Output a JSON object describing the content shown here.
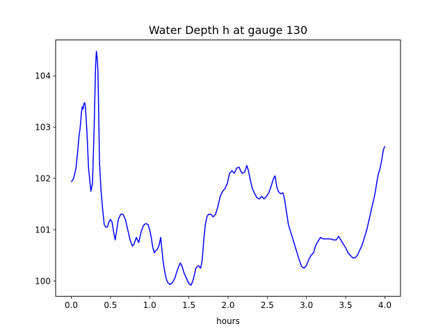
{
  "chart_data": {
    "type": "line",
    "title": "Water Depth h at gauge 130",
    "xlabel": "hours",
    "ylabel": "",
    "xlim": [
      -0.2,
      4.2
    ],
    "ylim": [
      99.7,
      104.7
    ],
    "xticks": [
      0.0,
      0.5,
      1.0,
      1.5,
      2.0,
      2.5,
      3.0,
      3.5,
      4.0
    ],
    "xtick_labels": [
      "0.0",
      "0.5",
      "1.0",
      "1.5",
      "2.0",
      "2.5",
      "3.0",
      "3.5",
      "4.0"
    ],
    "yticks": [
      100,
      101,
      102,
      103,
      104
    ],
    "ytick_labels": [
      "100",
      "101",
      "102",
      "103",
      "104"
    ],
    "grid": false,
    "legend": "none",
    "series": [
      {
        "color": "#0000ff",
        "points": [
          [
            0.0,
            101.93
          ],
          [
            0.03,
            102.0
          ],
          [
            0.06,
            102.2
          ],
          [
            0.08,
            102.5
          ],
          [
            0.1,
            102.85
          ],
          [
            0.11,
            102.95
          ],
          [
            0.12,
            103.1
          ],
          [
            0.13,
            103.3
          ],
          [
            0.14,
            103.4
          ],
          [
            0.15,
            103.35
          ],
          [
            0.16,
            103.45
          ],
          [
            0.17,
            103.48
          ],
          [
            0.18,
            103.4
          ],
          [
            0.2,
            102.9
          ],
          [
            0.22,
            102.2
          ],
          [
            0.25,
            101.75
          ],
          [
            0.27,
            101.9
          ],
          [
            0.29,
            102.9
          ],
          [
            0.31,
            104.2
          ],
          [
            0.32,
            104.48
          ],
          [
            0.33,
            104.35
          ],
          [
            0.34,
            104.1
          ],
          [
            0.36,
            102.3
          ],
          [
            0.38,
            101.75
          ],
          [
            0.4,
            101.4
          ],
          [
            0.42,
            101.1
          ],
          [
            0.44,
            101.05
          ],
          [
            0.46,
            101.05
          ],
          [
            0.48,
            101.15
          ],
          [
            0.5,
            101.2
          ],
          [
            0.52,
            101.15
          ],
          [
            0.54,
            100.95
          ],
          [
            0.56,
            100.8
          ],
          [
            0.58,
            101.0
          ],
          [
            0.6,
            101.2
          ],
          [
            0.63,
            101.3
          ],
          [
            0.66,
            101.3
          ],
          [
            0.69,
            101.2
          ],
          [
            0.72,
            101.0
          ],
          [
            0.75,
            100.8
          ],
          [
            0.78,
            100.68
          ],
          [
            0.8,
            100.72
          ],
          [
            0.83,
            100.85
          ],
          [
            0.86,
            100.75
          ],
          [
            0.89,
            100.95
          ],
          [
            0.92,
            101.08
          ],
          [
            0.95,
            101.12
          ],
          [
            0.98,
            101.1
          ],
          [
            1.0,
            101.0
          ],
          [
            1.02,
            100.85
          ],
          [
            1.04,
            100.65
          ],
          [
            1.06,
            100.55
          ],
          [
            1.08,
            100.6
          ],
          [
            1.1,
            100.62
          ],
          [
            1.12,
            100.7
          ],
          [
            1.14,
            100.85
          ],
          [
            1.15,
            100.7
          ],
          [
            1.17,
            100.4
          ],
          [
            1.19,
            100.2
          ],
          [
            1.21,
            100.05
          ],
          [
            1.23,
            99.97
          ],
          [
            1.26,
            99.93
          ],
          [
            1.29,
            99.97
          ],
          [
            1.32,
            100.05
          ],
          [
            1.35,
            100.2
          ],
          [
            1.37,
            100.28
          ],
          [
            1.39,
            100.35
          ],
          [
            1.41,
            100.3
          ],
          [
            1.44,
            100.15
          ],
          [
            1.47,
            100.05
          ],
          [
            1.5,
            99.95
          ],
          [
            1.53,
            99.92
          ],
          [
            1.56,
            100.05
          ],
          [
            1.59,
            100.25
          ],
          [
            1.62,
            100.3
          ],
          [
            1.65,
            100.25
          ],
          [
            1.67,
            100.4
          ],
          [
            1.69,
            100.8
          ],
          [
            1.71,
            101.1
          ],
          [
            1.73,
            101.25
          ],
          [
            1.75,
            101.3
          ],
          [
            1.78,
            101.3
          ],
          [
            1.81,
            101.25
          ],
          [
            1.84,
            101.3
          ],
          [
            1.87,
            101.45
          ],
          [
            1.9,
            101.65
          ],
          [
            1.93,
            101.75
          ],
          [
            1.96,
            101.8
          ],
          [
            1.99,
            101.9
          ],
          [
            2.02,
            102.1
          ],
          [
            2.05,
            102.15
          ],
          [
            2.08,
            102.1
          ],
          [
            2.11,
            102.2
          ],
          [
            2.14,
            102.22
          ],
          [
            2.16,
            102.15
          ],
          [
            2.18,
            102.1
          ],
          [
            2.21,
            102.12
          ],
          [
            2.24,
            102.25
          ],
          [
            2.26,
            102.15
          ],
          [
            2.28,
            102.0
          ],
          [
            2.31,
            101.8
          ],
          [
            2.34,
            101.7
          ],
          [
            2.37,
            101.62
          ],
          [
            2.4,
            101.6
          ],
          [
            2.43,
            101.65
          ],
          [
            2.46,
            101.6
          ],
          [
            2.49,
            101.65
          ],
          [
            2.52,
            101.72
          ],
          [
            2.55,
            101.85
          ],
          [
            2.58,
            102.0
          ],
          [
            2.6,
            102.05
          ],
          [
            2.62,
            101.85
          ],
          [
            2.64,
            101.75
          ],
          [
            2.67,
            101.7
          ],
          [
            2.7,
            101.72
          ],
          [
            2.72,
            101.6
          ],
          [
            2.74,
            101.4
          ],
          [
            2.77,
            101.1
          ],
          [
            2.8,
            100.95
          ],
          [
            2.82,
            100.85
          ],
          [
            2.85,
            100.7
          ],
          [
            2.88,
            100.55
          ],
          [
            2.91,
            100.4
          ],
          [
            2.94,
            100.28
          ],
          [
            2.97,
            100.25
          ],
          [
            3.0,
            100.3
          ],
          [
            3.03,
            100.42
          ],
          [
            3.06,
            100.5
          ],
          [
            3.09,
            100.55
          ],
          [
            3.12,
            100.7
          ],
          [
            3.15,
            100.78
          ],
          [
            3.18,
            100.85
          ],
          [
            3.21,
            100.82
          ],
          [
            3.26,
            100.82
          ],
          [
            3.31,
            100.82
          ],
          [
            3.35,
            100.8
          ],
          [
            3.38,
            100.8
          ],
          [
            3.41,
            100.87
          ],
          [
            3.44,
            100.8
          ],
          [
            3.47,
            100.72
          ],
          [
            3.5,
            100.65
          ],
          [
            3.53,
            100.55
          ],
          [
            3.56,
            100.5
          ],
          [
            3.59,
            100.45
          ],
          [
            3.62,
            100.45
          ],
          [
            3.65,
            100.5
          ],
          [
            3.68,
            100.6
          ],
          [
            3.71,
            100.7
          ],
          [
            3.74,
            100.85
          ],
          [
            3.77,
            101.0
          ],
          [
            3.8,
            101.2
          ],
          [
            3.83,
            101.4
          ],
          [
            3.86,
            101.6
          ],
          [
            3.88,
            101.75
          ],
          [
            3.9,
            101.95
          ],
          [
            3.92,
            102.1
          ],
          [
            3.94,
            102.2
          ],
          [
            3.96,
            102.35
          ],
          [
            3.98,
            102.55
          ],
          [
            4.0,
            102.63
          ]
        ]
      }
    ]
  }
}
